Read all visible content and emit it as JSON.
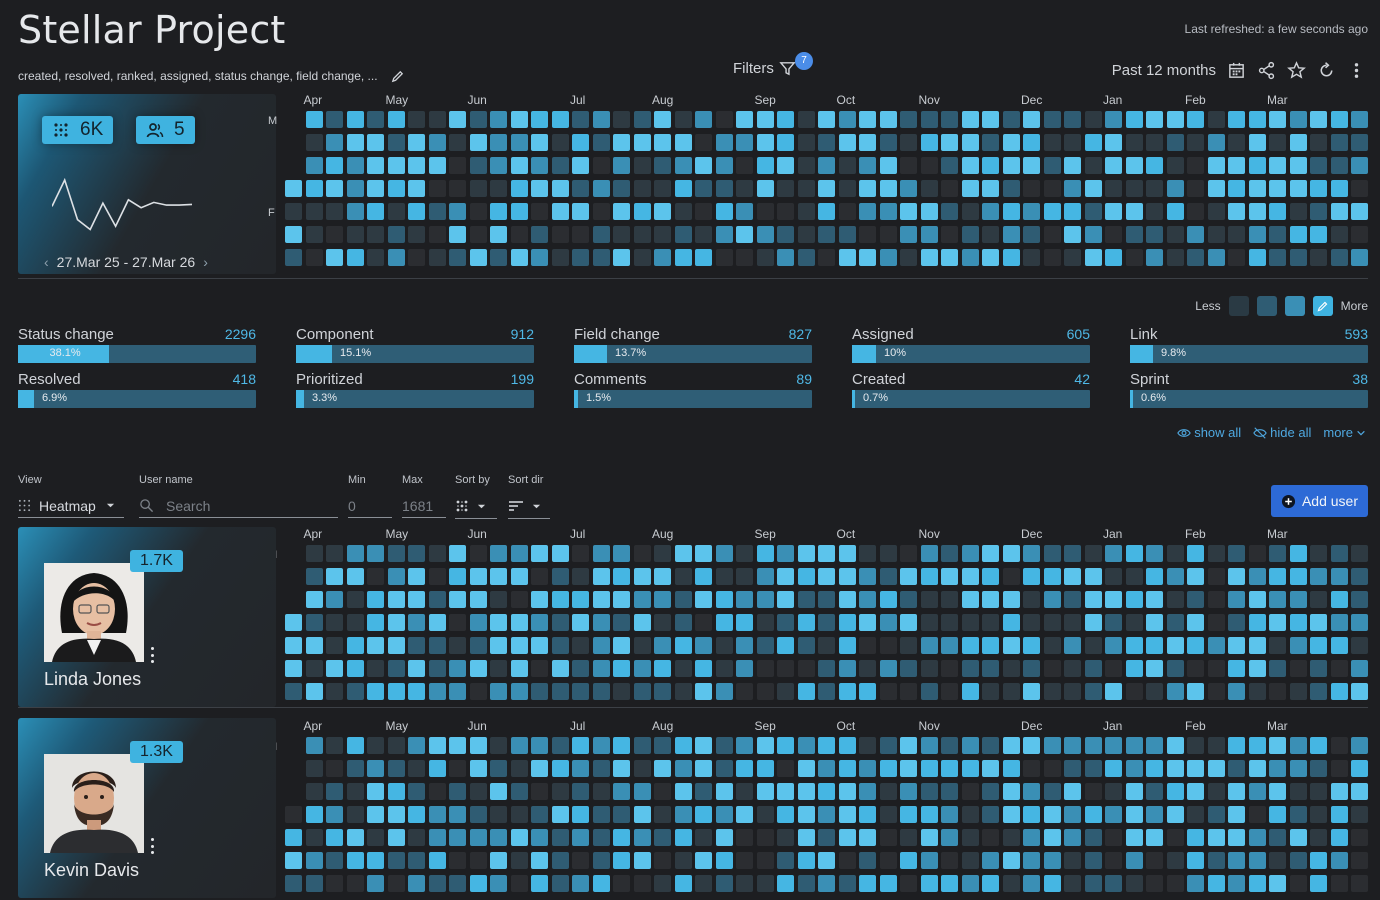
{
  "header": {
    "title": "Stellar Project",
    "refreshed": "Last refreshed: a few seconds ago",
    "activity_types": "created, resolved, ranked, assigned, status change, field change, ...",
    "filters_label": "Filters",
    "filters_count": "7",
    "range_label": "Past 12 months"
  },
  "summary": {
    "events": "6K",
    "users": "5",
    "date_range": "27.Mar 25 - 27.Mar 26",
    "sparkline": [
      60,
      100,
      40,
      25,
      65,
      30,
      70,
      58,
      66,
      62,
      62,
      63
    ]
  },
  "heatmap": {
    "months": [
      "Apr",
      "May",
      "Jun",
      "Jul",
      "Aug",
      "Sep",
      "Oct",
      "Nov",
      "Dec",
      "Jan",
      "Feb",
      "Mar"
    ],
    "month_weeks": [
      1,
      5,
      9,
      14,
      18,
      23,
      27,
      31,
      36,
      40,
      44,
      48
    ],
    "day_labels": {
      "monday": "M",
      "friday": "F"
    },
    "weeks": 53
  },
  "legend": {
    "less": "Less",
    "more": "More",
    "colors": [
      "#2a3a44",
      "#2f5c73",
      "#3a8fb5",
      "#45b6e3"
    ]
  },
  "stats": [
    {
      "label": "Status change",
      "value": "2296",
      "pct": "38.1%",
      "frac": 0.381
    },
    {
      "label": "Component",
      "value": "912",
      "pct": "15.1%",
      "frac": 0.151
    },
    {
      "label": "Field change",
      "value": "827",
      "pct": "13.7%",
      "frac": 0.137
    },
    {
      "label": "Assigned",
      "value": "605",
      "pct": "10%",
      "frac": 0.1
    },
    {
      "label": "Link",
      "value": "593",
      "pct": "9.8%",
      "frac": 0.098
    },
    {
      "label": "Resolved",
      "value": "418",
      "pct": "6.9%",
      "frac": 0.069
    },
    {
      "label": "Prioritized",
      "value": "199",
      "pct": "3.3%",
      "frac": 0.033
    },
    {
      "label": "Comments",
      "value": "89",
      "pct": "1.5%",
      "frac": 0.015
    },
    {
      "label": "Created",
      "value": "42",
      "pct": "0.7%",
      "frac": 0.007
    },
    {
      "label": "Sprint",
      "value": "38",
      "pct": "0.6%",
      "frac": 0.006
    }
  ],
  "stats_actions": {
    "show_all": "show all",
    "hide_all": "hide all",
    "more": "more"
  },
  "controls": {
    "view_label": "View",
    "view_value": "Heatmap",
    "username_label": "User name",
    "username_placeholder": "Search",
    "min_label": "Min",
    "min_placeholder": "0",
    "max_label": "Max",
    "max_placeholder": "1681",
    "sortby_label": "Sort by",
    "sortdir_label": "Sort dir",
    "add_user": "Add user"
  },
  "users": [
    {
      "name": "Linda Jones",
      "count": "1.7K"
    },
    {
      "name": "Kevin Davis",
      "count": "1.3K"
    }
  ]
}
